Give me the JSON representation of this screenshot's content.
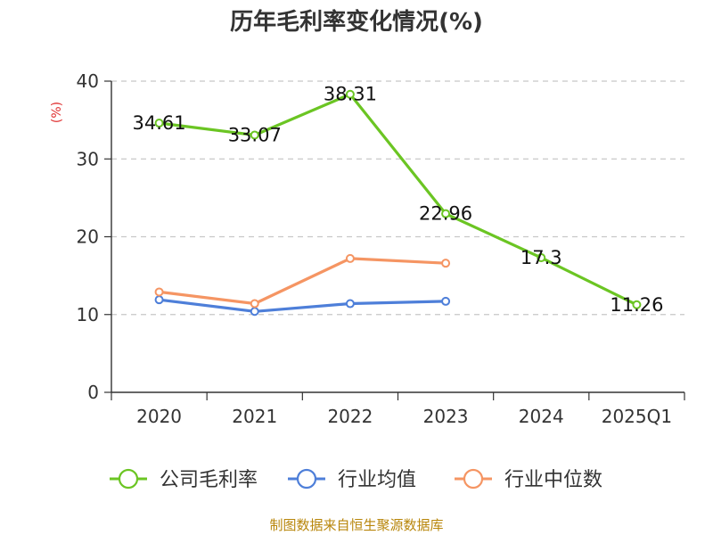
{
  "chart_data": {
    "type": "line",
    "title": "历年毛利率变化情况(%)",
    "ylabel": "(%)",
    "ylim": [
      0,
      40
    ],
    "yticks": [
      0,
      10,
      20,
      30,
      40
    ],
    "categories": [
      "2020",
      "2021",
      "2022",
      "2023",
      "2024",
      "2025Q1"
    ],
    "series": [
      {
        "name": "公司毛利率",
        "color": "#6bc523",
        "values": [
          34.61,
          33.07,
          38.31,
          22.96,
          17.3,
          11.26
        ],
        "labels": [
          "34.61",
          "33.07",
          "38.31",
          "22.96",
          "17.3",
          "11.26"
        ]
      },
      {
        "name": "行业均值",
        "color": "#4e7fd9",
        "values": [
          11.9,
          10.4,
          11.4,
          11.7,
          null,
          null
        ]
      },
      {
        "name": "行业中位数",
        "color": "#f59563",
        "values": [
          12.9,
          11.4,
          17.2,
          16.6,
          null,
          null
        ]
      }
    ],
    "grid": true,
    "legend": "bottom"
  },
  "source": "制图数据来自恒生聚源数据库"
}
